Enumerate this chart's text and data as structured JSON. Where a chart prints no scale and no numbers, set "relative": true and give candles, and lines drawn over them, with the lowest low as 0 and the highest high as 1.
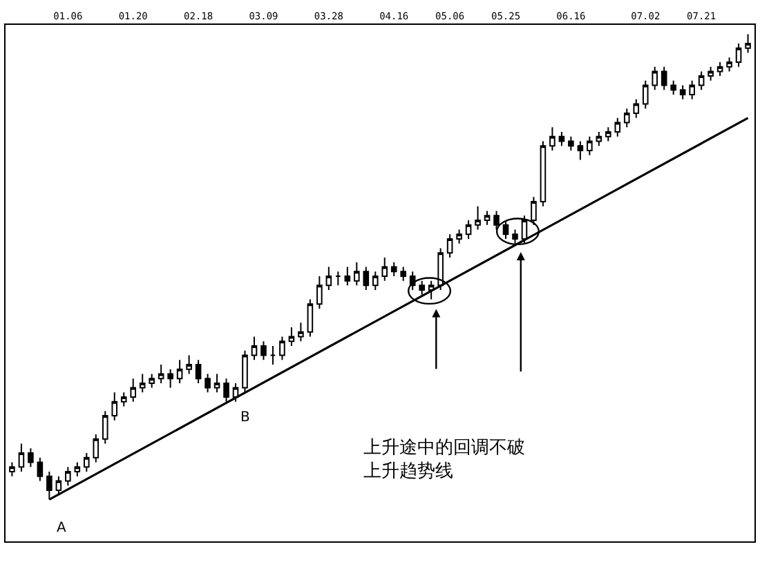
{
  "chart_data": {
    "type": "candlestick",
    "relative": true,
    "categories": [
      null,
      null,
      null,
      null,
      null,
      null,
      "01.06",
      null,
      null,
      null,
      null,
      null,
      null,
      "01.20",
      null,
      null,
      null,
      null,
      null,
      null,
      "02.18",
      null,
      null,
      null,
      null,
      null,
      null,
      "03.09",
      null,
      null,
      null,
      null,
      null,
      null,
      "03.28",
      null,
      null,
      null,
      null,
      null,
      null,
      "04.16",
      null,
      null,
      null,
      null,
      null,
      "05.06",
      null,
      null,
      null,
      null,
      null,
      "05.25",
      null,
      null,
      null,
      null,
      null,
      null,
      "06.16",
      null,
      null,
      null,
      null,
      null,
      null,
      null,
      "07.02",
      null,
      null,
      null,
      null,
      null,
      "07.21",
      null,
      null,
      null,
      null,
      null
    ],
    "color": "#000000",
    "ohlc": [
      [
        0.06,
        0.08,
        0.05,
        0.07
      ],
      [
        0.07,
        0.12,
        0.06,
        0.1
      ],
      [
        0.1,
        0.11,
        0.07,
        0.08
      ],
      [
        0.08,
        0.09,
        0.04,
        0.05
      ],
      [
        0.05,
        0.06,
        0,
        0.02
      ],
      [
        0.02,
        0.05,
        0.01,
        0.04
      ],
      [
        0.04,
        0.07,
        0.03,
        0.06
      ],
      [
        0.06,
        0.08,
        0.05,
        0.07
      ],
      [
        0.07,
        0.1,
        0.06,
        0.09
      ],
      [
        0.09,
        0.14,
        0.08,
        0.13
      ],
      [
        0.13,
        0.19,
        0.12,
        0.18
      ],
      [
        0.18,
        0.23,
        0.17,
        0.21
      ],
      [
        0.21,
        0.23,
        0.2,
        0.22
      ],
      [
        0.22,
        0.26,
        0.21,
        0.24
      ],
      [
        0.24,
        0.27,
        0.23,
        0.25
      ],
      [
        0.25,
        0.27,
        0.24,
        0.26
      ],
      [
        0.26,
        0.29,
        0.25,
        0.27
      ],
      [
        0.27,
        0.28,
        0.24,
        0.26
      ],
      [
        0.26,
        0.3,
        0.25,
        0.28
      ],
      [
        0.28,
        0.31,
        0.27,
        0.29
      ],
      [
        0.29,
        0.3,
        0.25,
        0.26
      ],
      [
        0.26,
        0.27,
        0.23,
        0.24
      ],
      [
        0.24,
        0.27,
        0.23,
        0.25
      ],
      [
        0.25,
        0.26,
        0.21,
        0.22
      ],
      [
        0.22,
        0.25,
        0.21,
        0.24
      ],
      [
        0.24,
        0.32,
        0.23,
        0.31
      ],
      [
        0.31,
        0.35,
        0.3,
        0.33
      ],
      [
        0.33,
        0.34,
        0.3,
        0.31
      ],
      [
        0.31,
        0.33,
        0.29,
        0.31
      ],
      [
        0.31,
        0.35,
        0.3,
        0.34
      ],
      [
        0.34,
        0.37,
        0.33,
        0.35
      ],
      [
        0.35,
        0.38,
        0.34,
        0.36
      ],
      [
        0.36,
        0.43,
        0.35,
        0.42
      ],
      [
        0.42,
        0.48,
        0.41,
        0.46
      ],
      [
        0.46,
        0.5,
        0.45,
        0.48
      ],
      [
        0.48,
        0.49,
        0.46,
        0.48
      ],
      [
        0.48,
        0.5,
        0.46,
        0.47
      ],
      [
        0.47,
        0.51,
        0.46,
        0.49
      ],
      [
        0.49,
        0.5,
        0.45,
        0.46
      ],
      [
        0.46,
        0.49,
        0.45,
        0.48
      ],
      [
        0.48,
        0.52,
        0.47,
        0.5
      ],
      [
        0.5,
        0.51,
        0.48,
        0.49
      ],
      [
        0.49,
        0.5,
        0.47,
        0.48
      ],
      [
        0.48,
        0.49,
        0.45,
        0.46
      ],
      [
        0.46,
        0.47,
        0.44,
        0.45
      ],
      [
        0.45,
        0.47,
        0.43,
        0.46
      ],
      [
        0.46,
        0.54,
        0.45,
        0.53
      ],
      [
        0.53,
        0.57,
        0.52,
        0.56
      ],
      [
        0.56,
        0.58,
        0.55,
        0.57
      ],
      [
        0.57,
        0.6,
        0.56,
        0.59
      ],
      [
        0.59,
        0.63,
        0.58,
        0.6
      ],
      [
        0.6,
        0.62,
        0.59,
        0.61
      ],
      [
        0.61,
        0.62,
        0.58,
        0.59
      ],
      [
        0.59,
        0.6,
        0.56,
        0.57
      ],
      [
        0.57,
        0.58,
        0.55,
        0.56
      ],
      [
        0.56,
        0.61,
        0.55,
        0.6
      ],
      [
        0.6,
        0.65,
        0.59,
        0.64
      ],
      [
        0.64,
        0.77,
        0.63,
        0.76
      ],
      [
        0.76,
        0.8,
        0.75,
        0.78
      ],
      [
        0.78,
        0.79,
        0.76,
        0.77
      ],
      [
        0.77,
        0.78,
        0.75,
        0.76
      ],
      [
        0.76,
        0.77,
        0.73,
        0.75
      ],
      [
        0.75,
        0.78,
        0.74,
        0.77
      ],
      [
        0.77,
        0.79,
        0.76,
        0.78
      ],
      [
        0.78,
        0.8,
        0.77,
        0.79
      ],
      [
        0.79,
        0.82,
        0.78,
        0.81
      ],
      [
        0.81,
        0.84,
        0.8,
        0.83
      ],
      [
        0.83,
        0.86,
        0.82,
        0.85
      ],
      [
        0.85,
        0.9,
        0.84,
        0.89
      ],
      [
        0.89,
        0.93,
        0.88,
        0.92
      ],
      [
        0.92,
        0.93,
        0.88,
        0.89
      ],
      [
        0.89,
        0.9,
        0.87,
        0.88
      ],
      [
        0.88,
        0.89,
        0.86,
        0.87
      ],
      [
        0.87,
        0.9,
        0.86,
        0.89
      ],
      [
        0.89,
        0.92,
        0.88,
        0.91
      ],
      [
        0.91,
        0.93,
        0.9,
        0.92
      ],
      [
        0.92,
        0.94,
        0.91,
        0.93
      ],
      [
        0.93,
        0.95,
        0.92,
        0.94
      ],
      [
        0.94,
        0.98,
        0.93,
        0.97
      ],
      [
        0.97,
        1,
        0.96,
        0.98
      ]
    ],
    "series": [
      {
        "type": "line",
        "values": [
          null,
          null,
          null,
          null,
          0,
          null,
          null,
          null,
          null,
          null,
          null,
          null,
          null,
          null,
          null,
          null,
          null,
          null,
          null,
          null,
          null,
          null,
          null,
          null,
          null,
          null,
          null,
          null,
          null,
          null,
          null,
          null,
          null,
          null,
          null,
          null,
          null,
          null,
          null,
          null,
          null,
          null,
          null,
          null,
          null,
          null,
          null,
          null,
          null,
          null,
          null,
          null,
          null,
          null,
          null,
          null,
          null,
          null,
          null,
          null,
          null,
          null,
          null,
          null,
          null,
          null,
          null,
          null,
          null,
          null,
          null,
          null,
          null,
          null,
          null,
          null,
          null,
          null,
          null,
          0.82
        ],
        "color": "#000000"
      }
    ],
    "annotations": [
      "A",
      "B",
      "上升途中的回调不破",
      "上升趋势线"
    ]
  }
}
